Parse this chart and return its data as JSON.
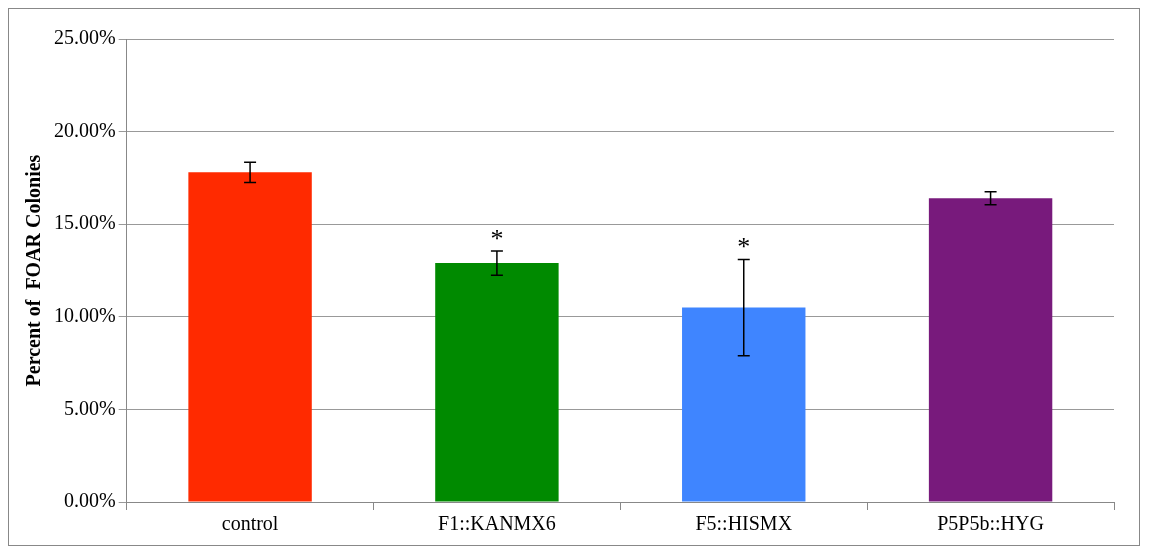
{
  "chart_data": {
    "type": "bar",
    "ylabel": "Percent of  FOAR Colonies",
    "categories": [
      "control",
      "F1::KANMX6",
      "F5::HISMX",
      "P5P5b::HYG"
    ],
    "values": [
      17.8,
      12.9,
      10.5,
      16.4
    ],
    "colors": [
      "#ff2a00",
      "#008a00",
      "#3f85ff",
      "#781a7c"
    ],
    "errors": [
      0.55,
      0.65,
      2.6,
      0.35
    ],
    "ylim": [
      0,
      25
    ],
    "yticks": [
      {
        "value": 0,
        "label": "0.00%"
      },
      {
        "value": 5,
        "label": "5.00%"
      },
      {
        "value": 10,
        "label": "10.00%"
      },
      {
        "value": 15,
        "label": "15.00%"
      },
      {
        "value": 20,
        "label": "20.00%"
      },
      {
        "value": 25,
        "label": "25.00%"
      }
    ],
    "grid": "y",
    "legend": false,
    "annotations": [
      {
        "text": "*",
        "x": "F1::KANMX6",
        "y": 13.55
      },
      {
        "text": "*",
        "x": "F5::HISMX",
        "y": 13.1
      }
    ]
  }
}
